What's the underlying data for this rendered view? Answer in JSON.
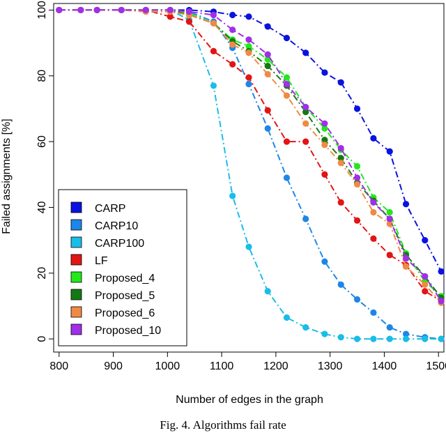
{
  "chart_data": {
    "type": "line",
    "xlabel": "Number of edges in the graph",
    "ylabel": "Failed assignments [%]",
    "xlim": [
      790,
      1510
    ],
    "ylim": [
      -4,
      102
    ],
    "xticks": [
      800,
      900,
      1000,
      1100,
      1200,
      1300,
      1400,
      1500
    ],
    "xtick_labels": [
      "800",
      "900",
      "1000",
      "1100",
      "1200",
      "1300",
      "1400",
      "1500"
    ],
    "yticks": [
      0,
      20,
      40,
      60,
      80,
      100
    ],
    "ytick_labels": [
      "0",
      "20",
      "40",
      "60",
      "80",
      "100"
    ],
    "x": [
      800,
      840,
      870,
      915,
      960,
      1005,
      1040,
      1085,
      1120,
      1150,
      1185,
      1220,
      1255,
      1290,
      1320,
      1350,
      1380,
      1410,
      1440,
      1475,
      1505
    ],
    "legend_position": "bottom-left",
    "series": [
      {
        "name": "CARP",
        "color": "#0a12e0",
        "dash": "dashdot",
        "values": [
          100,
          100,
          100,
          100,
          100,
          100,
          100,
          99.5,
          98.5,
          98,
          95,
          91.5,
          87,
          81,
          78,
          70,
          61,
          57,
          41,
          30,
          20.5
        ]
      },
      {
        "name": "CARP10",
        "color": "#1d86e8",
        "dash": "dashdot",
        "values": [
          100,
          100,
          100,
          100,
          100,
          100,
          99.5,
          96.5,
          88.5,
          77.5,
          64,
          49,
          36.5,
          23.5,
          16.5,
          12,
          8,
          3.5,
          1.5,
          0.5,
          0
        ]
      },
      {
        "name": "CARP100",
        "color": "#19bde8",
        "dash": "dashdot",
        "values": [
          100,
          100,
          100,
          100,
          100,
          100,
          97,
          77,
          43.5,
          28,
          14.5,
          6.5,
          3.5,
          1.5,
          0.5,
          0,
          0,
          0,
          0,
          0,
          0
        ]
      },
      {
        "name": "LF",
        "color": "#e31414",
        "dash": "dashdot",
        "values": [
          100,
          100,
          100,
          100,
          100,
          98,
          96.5,
          87.5,
          83.5,
          79.5,
          69.5,
          60,
          60,
          50,
          41.5,
          36,
          30.5,
          25.5,
          22.5,
          14.5,
          11.5
        ]
      },
      {
        "name": "Proposed_4",
        "color": "#22e81c",
        "dash": "dashdot",
        "values": [
          100,
          100,
          100,
          100,
          100,
          100,
          99,
          96,
          91,
          89,
          85,
          79.5,
          70.5,
          64,
          57.5,
          52.5,
          43,
          38.5,
          26,
          17.5,
          13
        ]
      },
      {
        "name": "Proposed_5",
        "color": "#137a13",
        "dash": "dashdot",
        "values": [
          100,
          100,
          100,
          100,
          100,
          100,
          98.5,
          96,
          90.5,
          87.5,
          83,
          77,
          69,
          60.5,
          55,
          47.5,
          42,
          36.5,
          25.5,
          19,
          12.5
        ]
      },
      {
        "name": "Proposed_6",
        "color": "#ef8a45",
        "dash": "dashdot",
        "values": [
          100,
          100,
          100,
          100,
          99.5,
          99.5,
          98.5,
          96,
          89.5,
          87,
          80.5,
          74,
          65.5,
          59,
          53.5,
          47,
          38.5,
          35,
          22,
          16.5,
          11
        ]
      },
      {
        "name": "Proposed_10",
        "color": "#a22ee8",
        "dash": "dashdot",
        "values": [
          100,
          100,
          100,
          100,
          100,
          100,
          99.5,
          98.5,
          94,
          91,
          86.5,
          77.5,
          70.5,
          65.5,
          58,
          49,
          41.5,
          36.5,
          24.5,
          19,
          11.5
        ]
      }
    ]
  },
  "caption": "Fig. 4.   Algorithms fail rate"
}
